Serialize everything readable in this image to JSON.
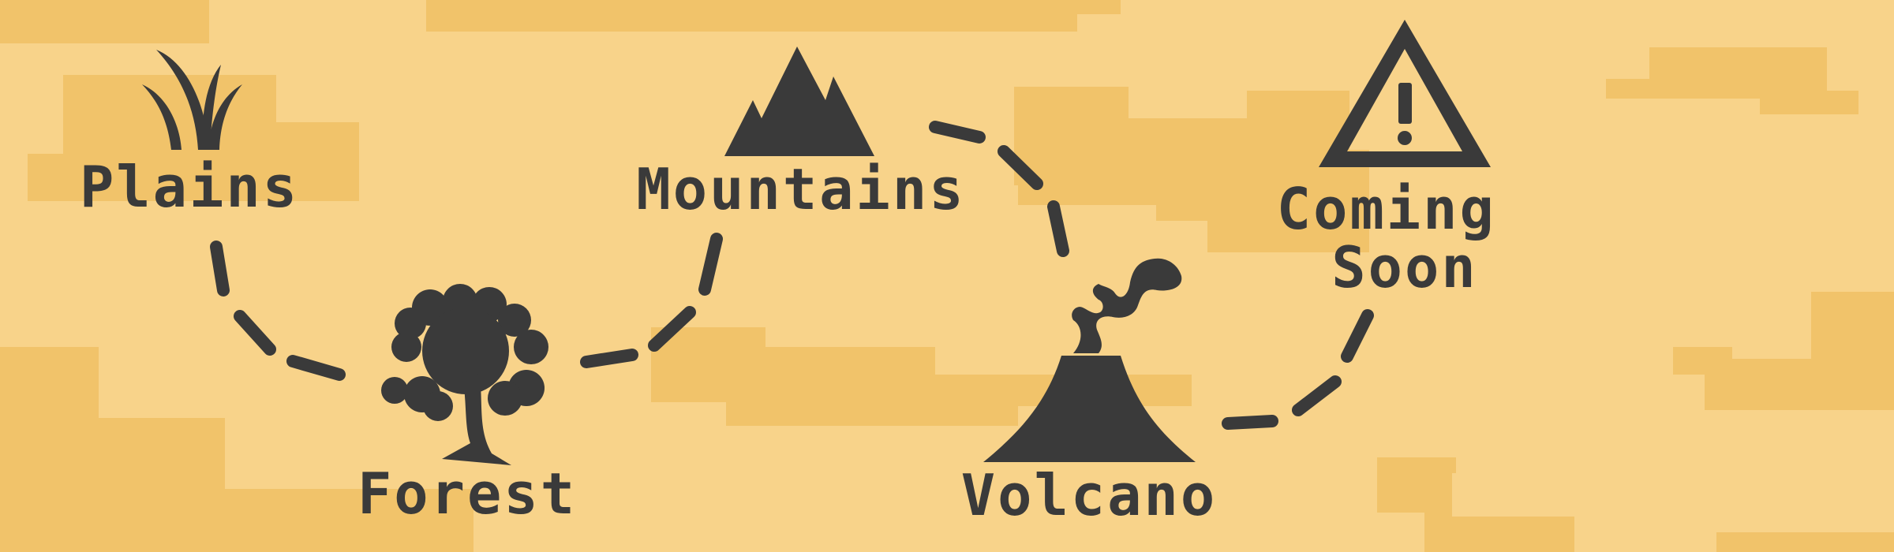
{
  "map": {
    "theme": {
      "background": "#f8d38a",
      "patch_color": "#f1c36a",
      "ink": "#3a3a3a"
    },
    "locations": [
      {
        "id": "plains",
        "label": "Plains",
        "icon": "grass-icon",
        "locked": false
      },
      {
        "id": "forest",
        "label": "Forest",
        "icon": "tree-icon",
        "locked": false
      },
      {
        "id": "mountains",
        "label": "Mountains",
        "icon": "mountain-icon",
        "locked": false
      },
      {
        "id": "volcano",
        "label": "Volcano",
        "icon": "volcano-icon",
        "locked": false
      },
      {
        "id": "coming_soon",
        "label_lines": [
          "Coming",
          "Soon"
        ],
        "icon": "warning-icon",
        "locked": true
      }
    ]
  }
}
